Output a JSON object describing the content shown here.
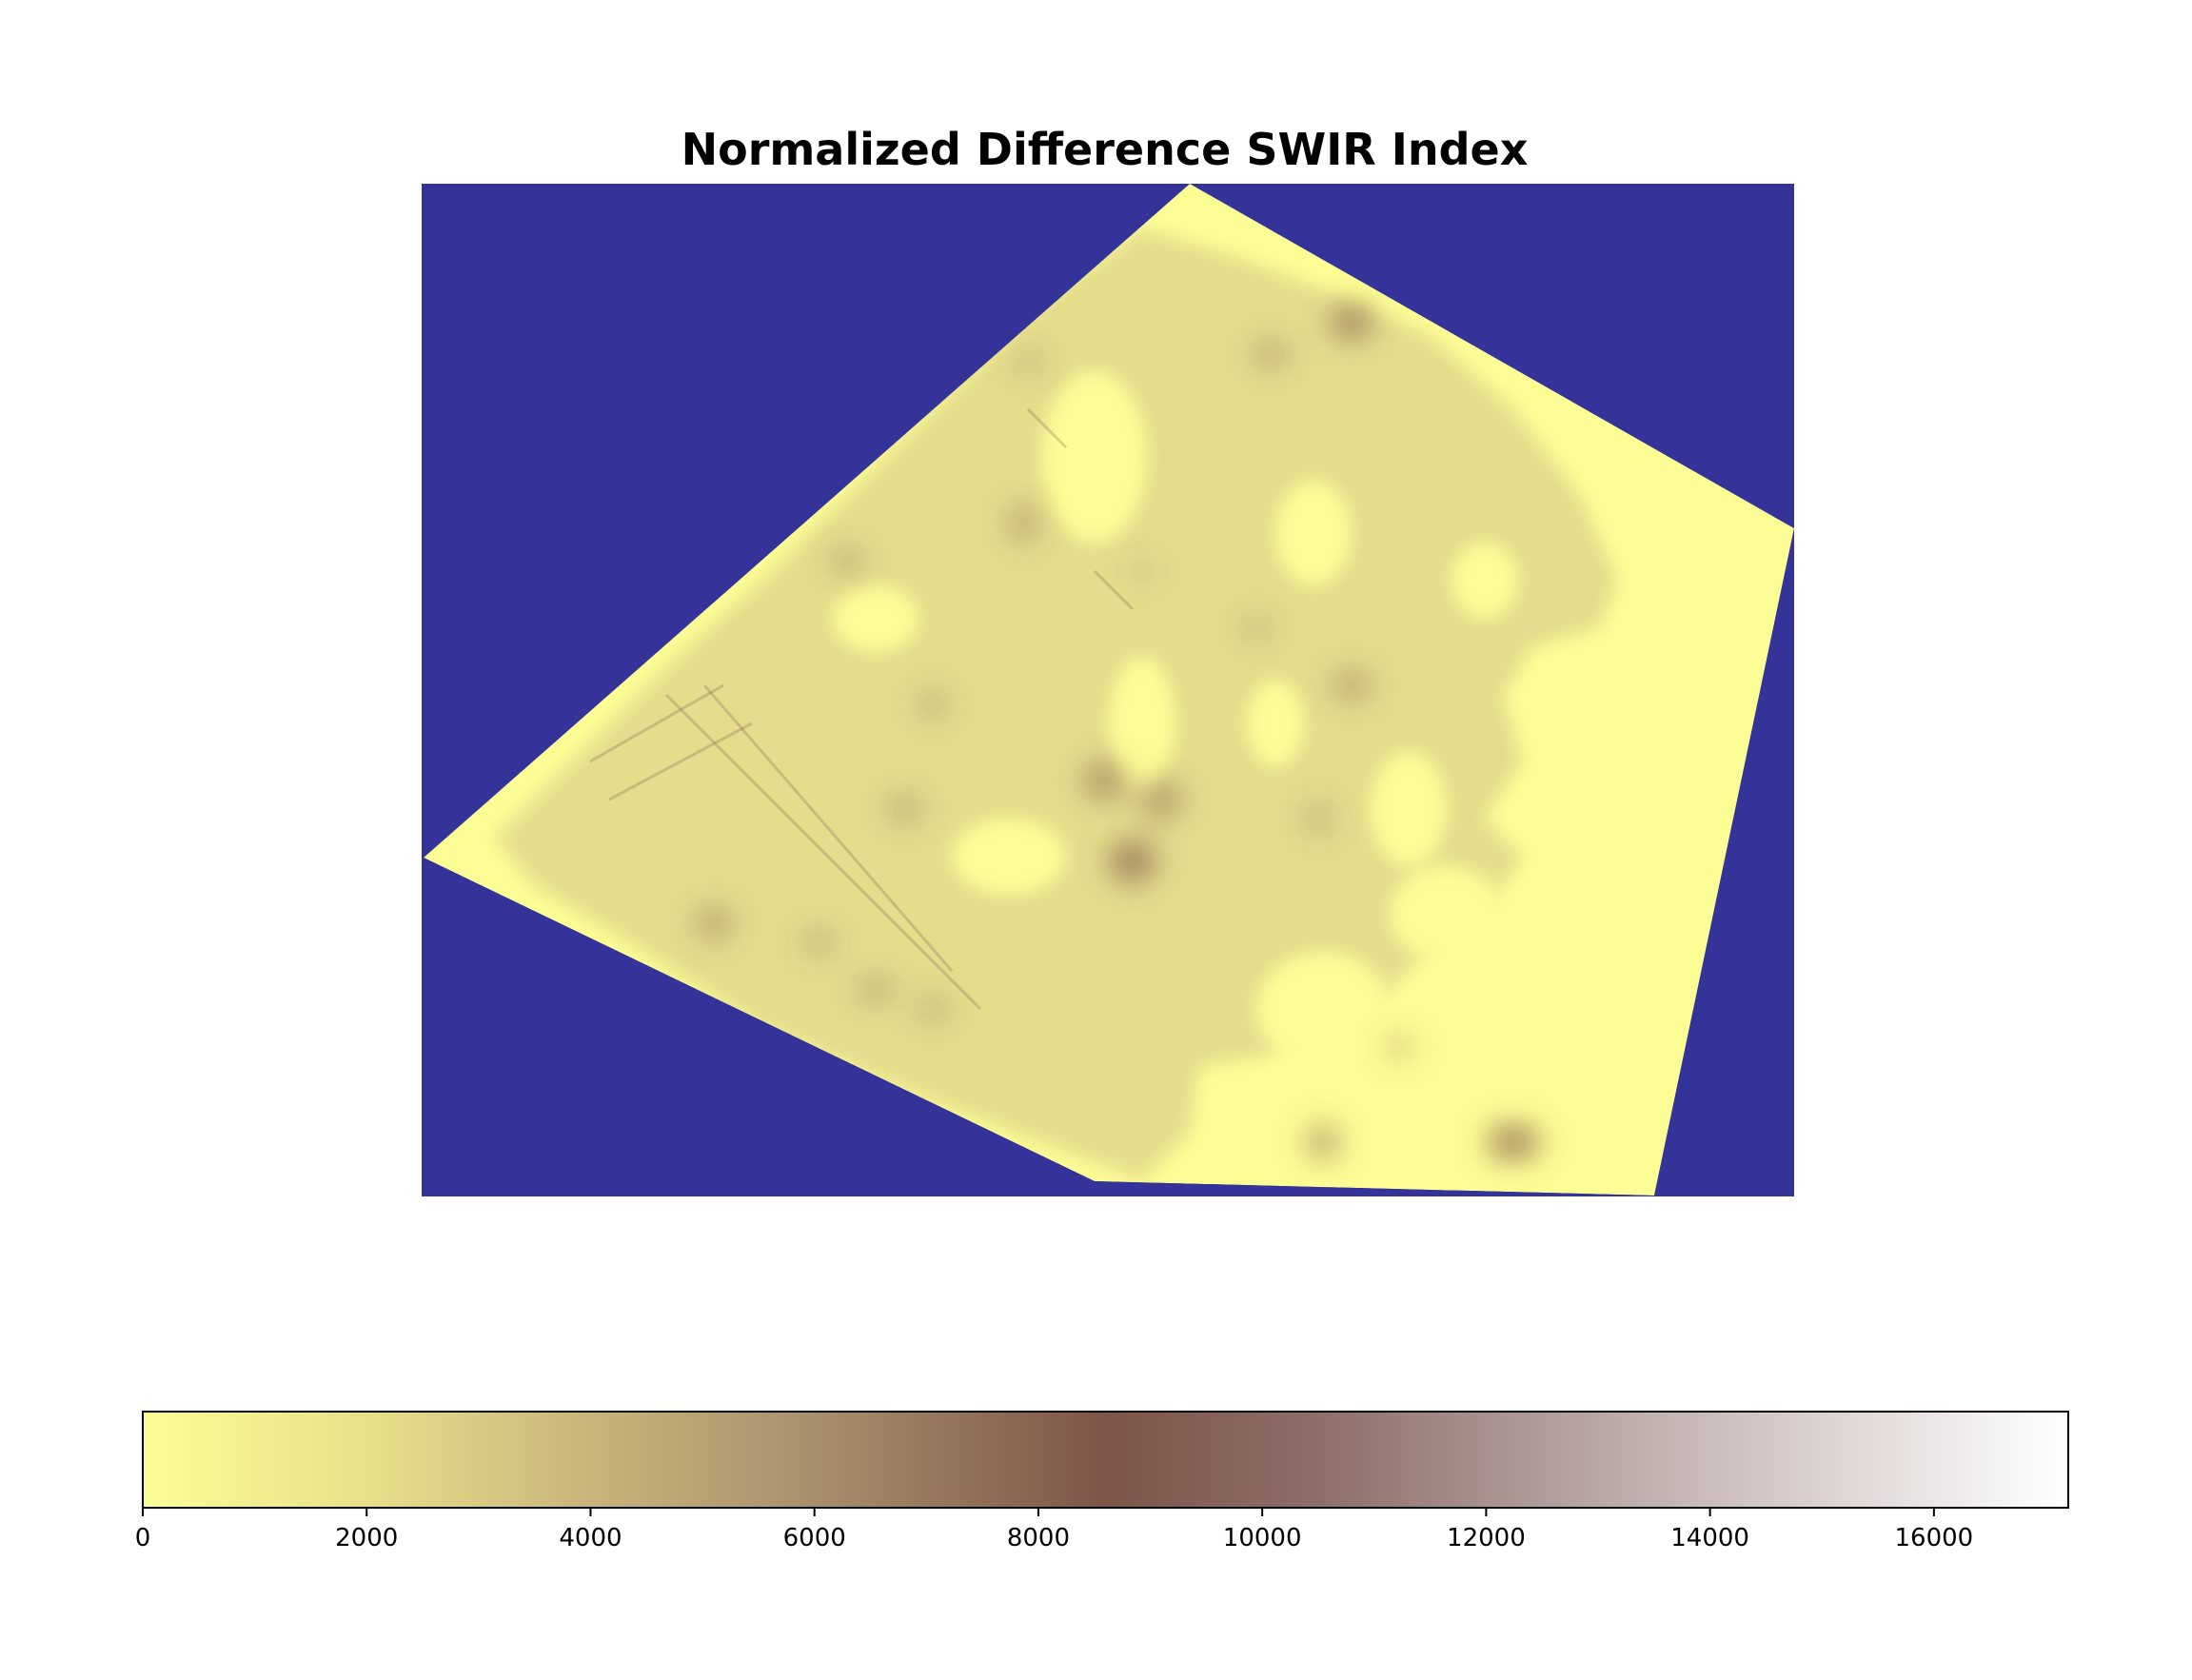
{
  "chart_data": {
    "type": "heatmap",
    "title": "Normalized Difference SWIR Index",
    "xlabel": "",
    "ylabel": "",
    "axes_visible": false,
    "image_description": "index raster shown on a no-data background; the raster covers an irregular polygon of mostly low values with patchy mid-range (brownish) areas",
    "background_color": "#333399",
    "colorbar": {
      "orientation": "horizontal",
      "placement": "bottom",
      "range": [
        0,
        17200
      ],
      "ticks": [
        0,
        2000,
        4000,
        6000,
        8000,
        10000,
        12000,
        14000,
        16000
      ],
      "tick_labels": [
        "0",
        "2000",
        "4000",
        "6000",
        "8000",
        "10000",
        "12000",
        "14000",
        "16000"
      ],
      "colormap_stops": [
        {
          "value": 0,
          "color": "#fdfd96"
        },
        {
          "value": 2000,
          "color": "#e8e08a"
        },
        {
          "value": 4000,
          "color": "#c8b57a"
        },
        {
          "value": 6000,
          "color": "#a88f6c"
        },
        {
          "value": 8600,
          "color": "#7d5548"
        },
        {
          "value": 10500,
          "color": "#8e6e68"
        },
        {
          "value": 12500,
          "color": "#b09c9a"
        },
        {
          "value": 14500,
          "color": "#d4c8c7"
        },
        {
          "value": 17200,
          "color": "#ffffff"
        }
      ]
    },
    "colors": {
      "nodata": "#333399",
      "low_value": "#fdfd96",
      "mid_value": "#e3dc8c",
      "dark_patch": "#7d5548"
    }
  }
}
